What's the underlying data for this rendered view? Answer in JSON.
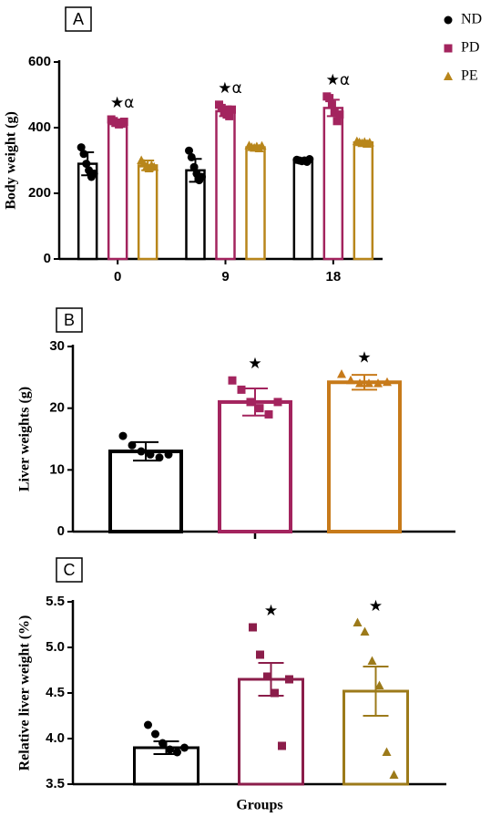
{
  "chart_data": [
    {
      "type": "grouped-bar",
      "panel": "A",
      "ylabel": "Body weight (g)",
      "categories": [
        "0",
        "9",
        "18"
      ],
      "ylim": [
        0,
        600
      ],
      "yticks": [
        0,
        200,
        400,
        600
      ],
      "legend": "right",
      "series": [
        {
          "name": "ND",
          "color": "#000000",
          "marker": "circle",
          "values": [
            290,
            270,
            300
          ],
          "errors": [
            35,
            35,
            5
          ],
          "points": [
            [
              340,
              320,
              290,
              270,
              250,
              260
            ],
            [
              330,
              310,
              280,
              260,
              240,
              250
            ],
            [
              302,
              300,
              298,
              300,
              296,
              304
            ]
          ]
        },
        {
          "name": "PD",
          "color": "#a3245e",
          "marker": "square",
          "values": [
            415,
            450,
            460
          ],
          "errors": [
            10,
            15,
            25
          ],
          "points": [
            [
              425,
              420,
              415,
              410,
              412,
              418
            ],
            [
              470,
              460,
              450,
              440,
              435,
              455
            ],
            [
              495,
              490,
              470,
              450,
              420,
              440
            ]
          ]
        },
        {
          "name": "PE",
          "color": "#b8861b",
          "marker": "triangle",
          "values": [
            285,
            340,
            355
          ],
          "errors": [
            15,
            5,
            5
          ],
          "points": [
            [
              300,
              290,
              280,
              275,
              285,
              280
            ],
            [
              345,
              340,
              338,
              342,
              336,
              344
            ],
            [
              358,
              355,
              352,
              356,
              350,
              354
            ]
          ]
        }
      ],
      "annotations": [
        "★α",
        "★α",
        "★α"
      ]
    },
    {
      "type": "bar",
      "panel": "B",
      "ylabel": "Liver weights (g)",
      "categories": [
        null,
        null,
        null
      ],
      "ylim": [
        0,
        30
      ],
      "yticks": [
        0,
        10,
        20,
        30
      ],
      "colors": [
        "#000000",
        "#a3245e",
        "#c77a1a"
      ],
      "markers": [
        "circle",
        "square",
        "triangle"
      ],
      "values": [
        13,
        21,
        24.2
      ],
      "errors": [
        1.5,
        2.2,
        1.2
      ],
      "points": [
        [
          15.5,
          14,
          13,
          12.5,
          12,
          12.5
        ],
        [
          24.5,
          23,
          21,
          20,
          19,
          21
        ],
        [
          25.5,
          24.5,
          24,
          24,
          24,
          24.2
        ]
      ],
      "annotations": [
        null,
        "★",
        "★"
      ]
    },
    {
      "type": "bar",
      "panel": "C",
      "ylabel": "Relative liver weight (%)",
      "xlabel": "Groups",
      "categories": [
        null,
        null,
        null
      ],
      "ylim": [
        3.5,
        5.5
      ],
      "yticks": [
        3.5,
        {
          "value": 4,
          "label": "4.0"
        },
        4.5,
        {
          "value": 5,
          "label": "5.0"
        },
        5.5
      ],
      "colors": [
        "#000000",
        "#8b1d4a",
        "#9c7a1a"
      ],
      "markers": [
        "circle",
        "square",
        "triangle"
      ],
      "values": [
        3.9,
        4.65,
        4.52
      ],
      "errors": [
        0.07,
        0.18,
        0.27
      ],
      "points": [
        [
          4.15,
          4.05,
          3.95,
          3.88,
          3.85,
          3.9
        ],
        [
          5.22,
          4.92,
          4.68,
          4.5,
          3.92,
          4.65
        ],
        [
          5.27,
          5.17,
          4.85,
          4.58,
          3.85,
          3.6
        ]
      ],
      "annotations": [
        null,
        "★",
        "★"
      ]
    }
  ]
}
